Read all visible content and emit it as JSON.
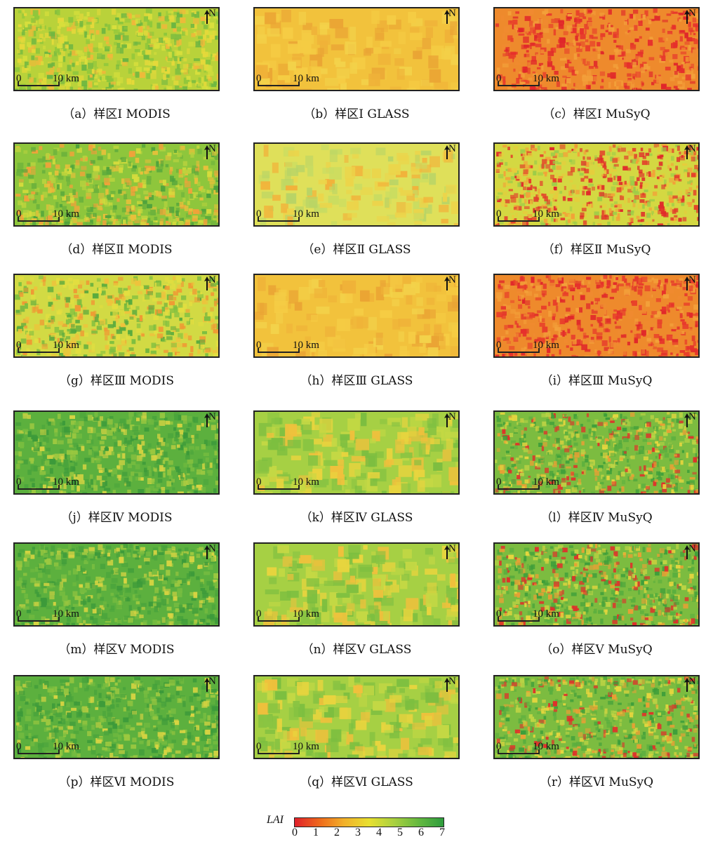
{
  "north_label": "N",
  "scale": {
    "zero": "0",
    "distance": "10 km"
  },
  "panels": [
    {
      "caption": "（a）样区Ⅰ MODIS",
      "scheme": "mix-yellow-green",
      "seed": 11
    },
    {
      "caption": "（b）样区Ⅰ GLASS",
      "scheme": "orange-smooth",
      "seed": 12
    },
    {
      "caption": "（c）样区Ⅰ MuSyQ",
      "scheme": "red-orange",
      "seed": 13
    },
    {
      "caption": "（d）样区Ⅱ MODIS",
      "scheme": "mix-green",
      "seed": 21
    },
    {
      "caption": "（e）样区Ⅱ GLASS",
      "scheme": "yellow-smooth",
      "seed": 22
    },
    {
      "caption": "（f）样区Ⅱ MuSyQ",
      "scheme": "yellow-red-net",
      "seed": 23
    },
    {
      "caption": "（g）样区Ⅲ MODIS",
      "scheme": "yellow-mix",
      "seed": 31
    },
    {
      "caption": "（h）样区Ⅲ GLASS",
      "scheme": "orange-smooth",
      "seed": 32
    },
    {
      "caption": "（i）样区Ⅲ MuSyQ",
      "scheme": "red-orange",
      "seed": 33
    },
    {
      "caption": "（j）样区Ⅳ MODIS",
      "scheme": "green",
      "seed": 41
    },
    {
      "caption": "（k）样区Ⅳ GLASS",
      "scheme": "lightgreen-smooth",
      "seed": 42
    },
    {
      "caption": "（l）样区Ⅳ MuSyQ",
      "scheme": "green-red-net",
      "seed": 43
    },
    {
      "caption": "（m）样区Ⅴ MODIS",
      "scheme": "green",
      "seed": 51
    },
    {
      "caption": "（n）样区Ⅴ GLASS",
      "scheme": "lightgreen-smooth",
      "seed": 52
    },
    {
      "caption": "（o）样区Ⅴ MuSyQ",
      "scheme": "green-red-net",
      "seed": 53
    },
    {
      "caption": "（p）样区Ⅵ MODIS",
      "scheme": "green",
      "seed": 61
    },
    {
      "caption": "（q）样区Ⅵ GLASS",
      "scheme": "lightgreen-smooth",
      "seed": 62
    },
    {
      "caption": "（r）样区Ⅵ MuSyQ",
      "scheme": "green-red-net",
      "seed": 63
    }
  ],
  "legend": {
    "label": "LAI",
    "ticks": [
      "0",
      "1",
      "2",
      "3",
      "4",
      "5",
      "6",
      "7"
    ],
    "colors": [
      "#e0202a",
      "#ef6f1c",
      "#f2b02a",
      "#e8e030",
      "#a8d040",
      "#62b840",
      "#2e9c3e"
    ]
  }
}
